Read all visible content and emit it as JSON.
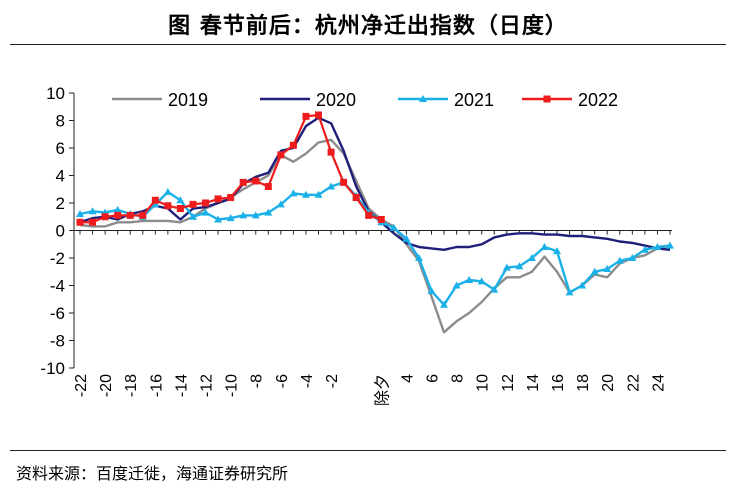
{
  "title": "图  春节前后：杭州净迁出指数（日度）",
  "source": "资料来源：百度迁徙，海通证券研究所",
  "colors": {
    "2019": "#8c8c8c",
    "2020": "#1f1f7a",
    "2021": "#1ab0e8",
    "2022": "#ee1c1c"
  },
  "chart_data": {
    "type": "line",
    "title": "春节前后：杭州净迁出指数（日度）",
    "xlabel": "",
    "ylabel": "",
    "ylim": [
      -10,
      10
    ],
    "yticks": [
      "10",
      "8",
      "6",
      "4",
      "2",
      "0",
      "-2",
      "-4",
      "-6",
      "-8",
      "-10"
    ],
    "xlim": [
      -22,
      25
    ],
    "xticks": [
      "-22",
      "-20",
      "-18",
      "-16",
      "-14",
      "-12",
      "-10",
      "-8",
      "-6",
      "-4",
      "-2",
      "除夕",
      "4",
      "6",
      "8",
      "10",
      "12",
      "14",
      "16",
      "18",
      "20",
      "22",
      "24"
    ],
    "legend": [
      "2019",
      "2020",
      "2021",
      "2022"
    ],
    "series": [
      {
        "name": "2019",
        "x": [
          -22,
          -21,
          -20,
          -19,
          -18,
          -17,
          -16,
          -15,
          -14,
          -13,
          -12,
          -11,
          -10,
          -9,
          -8,
          -7,
          -6,
          -5,
          -4,
          -3,
          -2,
          -1,
          0,
          1,
          2,
          3,
          4,
          5,
          6,
          7,
          8,
          9,
          10,
          11,
          12,
          13,
          14,
          15,
          16,
          17,
          18,
          19,
          20,
          21,
          22,
          23,
          24,
          25
        ],
        "y": [
          0.4,
          0.3,
          0.3,
          0.6,
          0.6,
          0.7,
          0.7,
          0.7,
          0.6,
          1.0,
          1.6,
          2.0,
          2.4,
          3.0,
          3.5,
          4.0,
          5.5,
          5.0,
          5.6,
          6.4,
          6.6,
          5.6,
          3.6,
          1.6,
          0.8,
          0.3,
          -1.0,
          -2.2,
          -4.8,
          -7.4,
          -6.6,
          -6.0,
          -5.2,
          -4.2,
          -3.4,
          -3.4,
          -3.0,
          -1.9,
          -3.0,
          -4.5,
          -4.0,
          -3.2,
          -3.4,
          -2.4,
          -2.0,
          -1.8,
          -1.3,
          -1.3
        ]
      },
      {
        "name": "2020",
        "x": [
          -22,
          -21,
          -20,
          -19,
          -18,
          -17,
          -16,
          -15,
          -14,
          -13,
          -12,
          -11,
          -10,
          -9,
          -8,
          -7,
          -6,
          -5,
          -4,
          -3,
          -2,
          -1,
          0,
          1,
          2,
          3,
          4,
          5,
          6,
          7,
          8,
          9,
          10,
          11,
          12,
          13,
          14,
          15,
          16,
          17,
          18,
          19,
          20,
          21,
          22,
          23,
          24,
          25
        ],
        "y": [
          0.6,
          0.9,
          1.0,
          0.8,
          1.2,
          1.4,
          1.8,
          1.6,
          0.8,
          1.6,
          1.7,
          2.0,
          2.3,
          3.4,
          3.9,
          4.2,
          5.8,
          6.0,
          7.6,
          8.2,
          7.8,
          5.8,
          3.2,
          1.4,
          0.6,
          -0.2,
          -0.9,
          -1.2,
          -1.3,
          -1.4,
          -1.2,
          -1.2,
          -1.0,
          -0.5,
          -0.3,
          -0.2,
          -0.2,
          -0.3,
          -0.3,
          -0.4,
          -0.4,
          -0.5,
          -0.6,
          -0.8,
          -0.9,
          -1.1,
          -1.3,
          -1.4
        ]
      },
      {
        "name": "2021",
        "x": [
          -22,
          -21,
          -20,
          -19,
          -18,
          -17,
          -16,
          -15,
          -14,
          -13,
          -12,
          -11,
          -10,
          -9,
          -8,
          -7,
          -6,
          -5,
          -4,
          -3,
          -2,
          -1,
          0,
          1,
          2,
          3,
          4,
          5,
          6,
          7,
          8,
          9,
          10,
          11,
          12,
          13,
          14,
          15,
          16,
          17,
          18,
          19,
          20,
          21,
          22,
          23,
          24,
          25
        ],
        "y": [
          1.2,
          1.4,
          1.3,
          1.5,
          1.2,
          1.0,
          1.9,
          2.8,
          2.2,
          1.0,
          1.3,
          0.8,
          0.9,
          1.1,
          1.1,
          1.3,
          1.9,
          2.7,
          2.6,
          2.6,
          3.2,
          3.5,
          2.5,
          1.3,
          0.6,
          0.2,
          -0.6,
          -2.0,
          -4.4,
          -5.4,
          -4.0,
          -3.6,
          -3.7,
          -4.3,
          -2.7,
          -2.6,
          -2.0,
          -1.2,
          -1.5,
          -4.5,
          -4.0,
          -3.0,
          -2.8,
          -2.2,
          -2.0,
          -1.4,
          -1.2,
          -1.1
        ]
      },
      {
        "name": "2022",
        "x": [
          -22,
          -21,
          -20,
          -19,
          -18,
          -17,
          -16,
          -15,
          -14,
          -13,
          -12,
          -11,
          -10,
          -9,
          -8,
          -7,
          -6,
          -5,
          -4,
          -3,
          -2,
          -1,
          0,
          1,
          2
        ],
        "y": [
          0.6,
          0.6,
          1.0,
          1.1,
          1.1,
          1.1,
          2.2,
          1.8,
          1.6,
          1.9,
          2.0,
          2.3,
          2.4,
          3.5,
          3.6,
          3.2,
          5.5,
          6.2,
          8.3,
          8.4,
          5.7,
          3.5,
          2.4,
          1.1,
          0.8
        ]
      }
    ]
  }
}
